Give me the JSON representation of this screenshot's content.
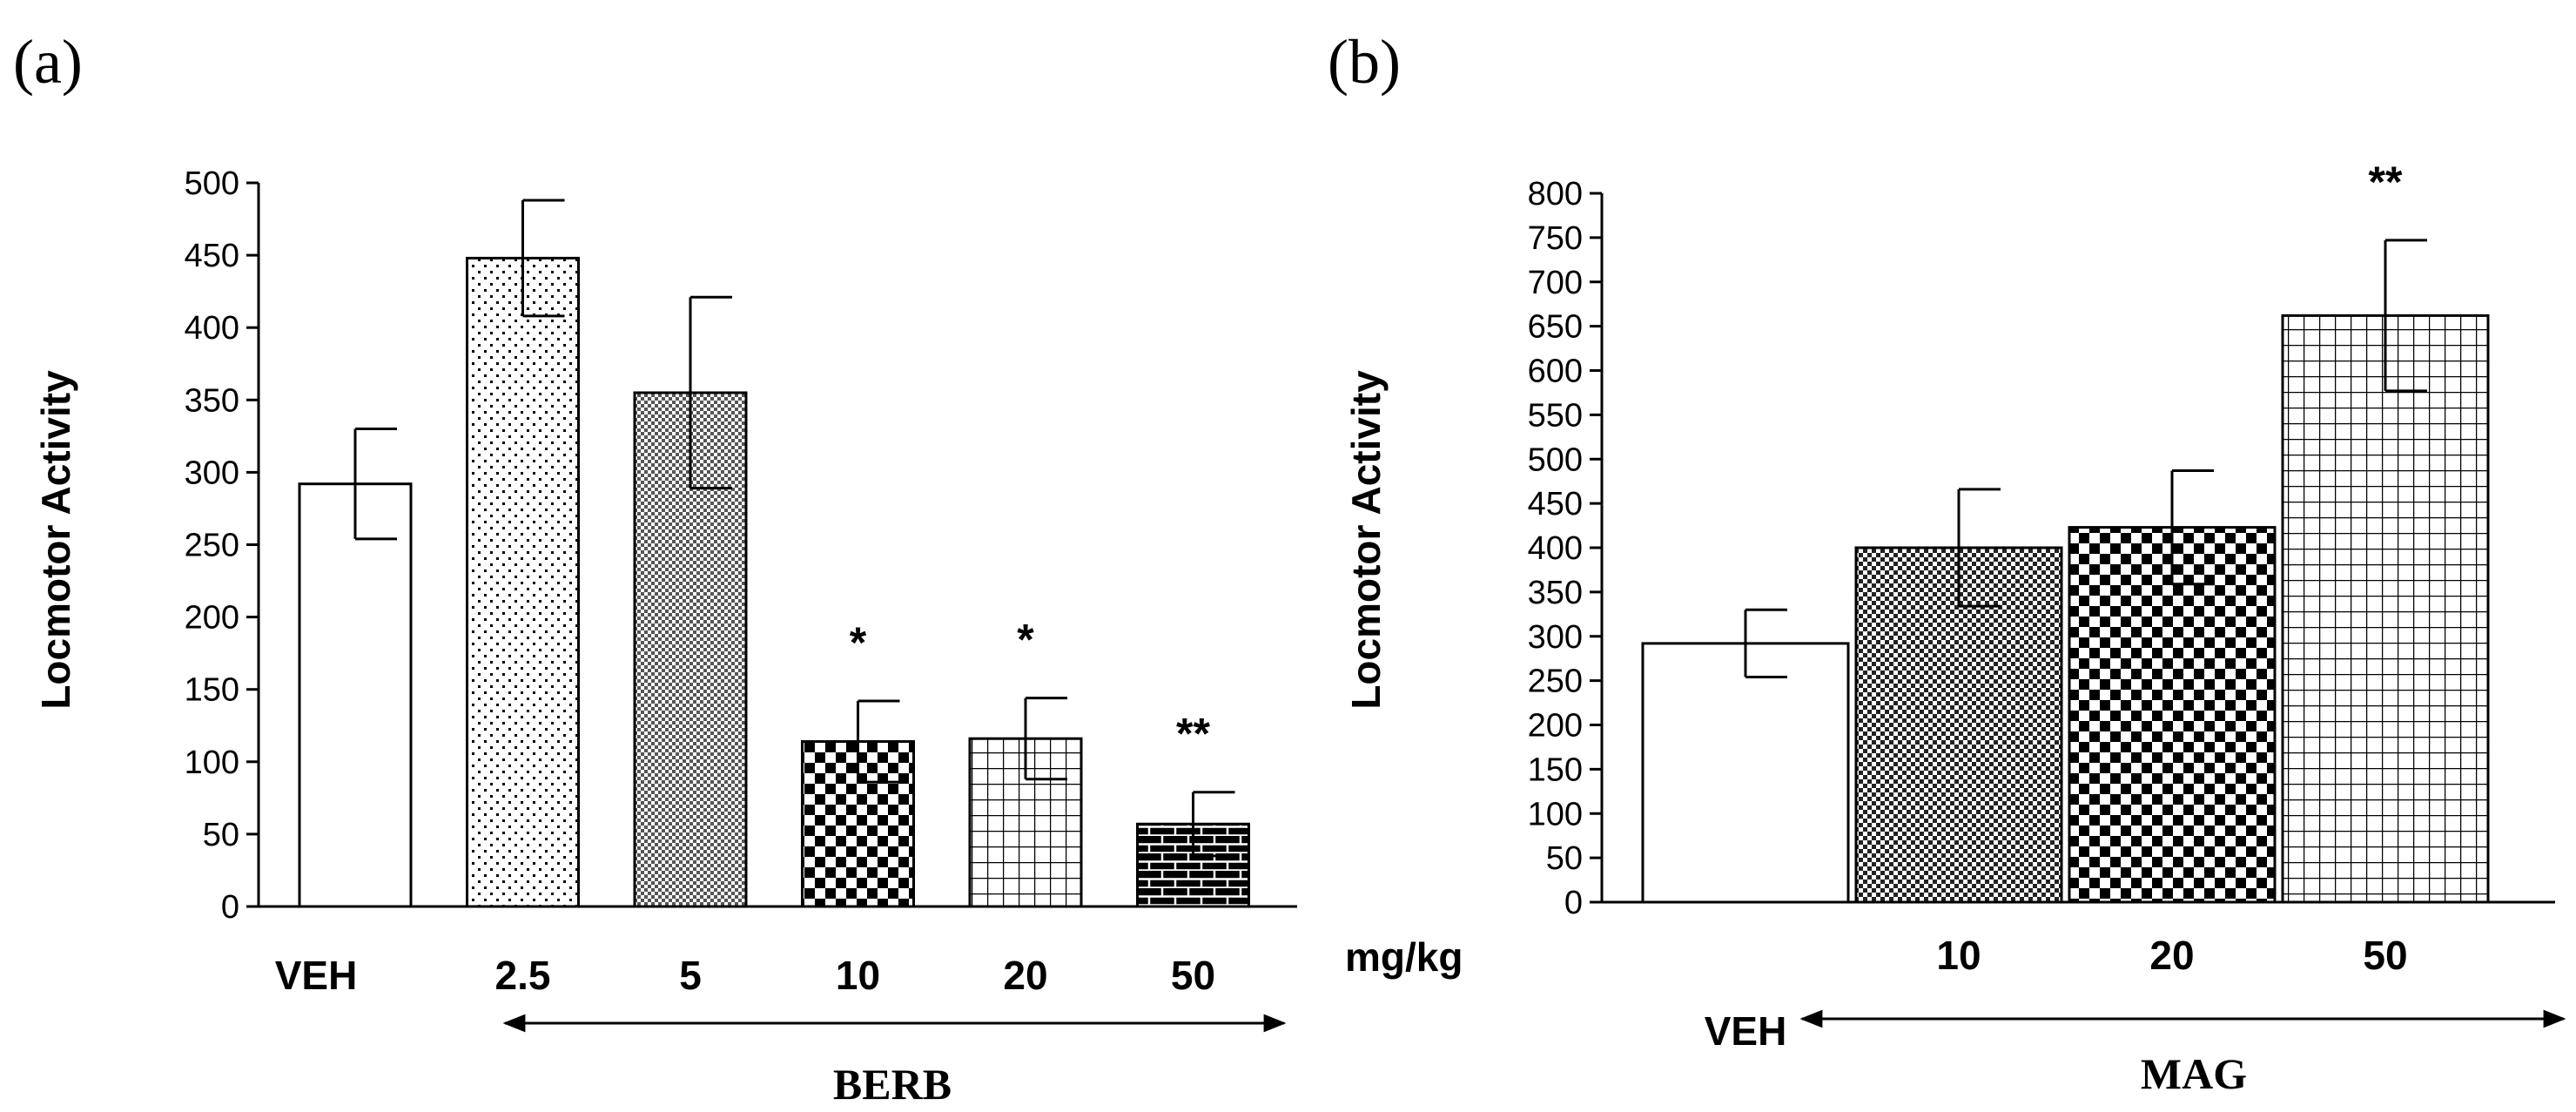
{
  "chart_data": [
    {
      "type": "bar",
      "panel_label": "(a)",
      "ylabel": "Locmotor Activity",
      "ylim": [
        0,
        500
      ],
      "yticks": [
        "0",
        "50",
        "100",
        "150",
        "200",
        "250",
        "300",
        "350",
        "400",
        "450",
        "500"
      ],
      "categories": [
        "VEH",
        "2.5",
        "5",
        "10",
        "20",
        "50"
      ],
      "values": [
        292,
        448,
        355,
        114,
        116,
        57
      ],
      "errors": [
        38,
        40,
        66,
        28,
        28,
        22
      ],
      "patterns": [
        "none",
        "sparse-dots",
        "dense-dots",
        "checker",
        "grid",
        "brick"
      ],
      "significance": [
        "",
        "",
        "",
        "*",
        "*",
        "**"
      ],
      "group_label": "BERB",
      "grid": false
    },
    {
      "type": "bar",
      "panel_label": "(b)",
      "ylabel": "Locmotor Activity",
      "ylim": [
        0,
        800
      ],
      "yticks": [
        "0",
        "50",
        "100",
        "150",
        "200",
        "250",
        "300",
        "350",
        "400",
        "450",
        "500",
        "550",
        "600",
        "650",
        "700",
        "750",
        "800"
      ],
      "unit_label": "mg/kg",
      "categories": [
        "VEH",
        "10",
        "20",
        "50"
      ],
      "values": [
        292,
        400,
        423,
        662
      ],
      "errors": [
        38,
        66,
        64,
        85
      ],
      "patterns": [
        "none",
        "fine-checker",
        "checker",
        "grid"
      ],
      "significance": [
        "",
        "",
        "",
        "**"
      ],
      "group_label": "MAG",
      "grid": false
    }
  ]
}
